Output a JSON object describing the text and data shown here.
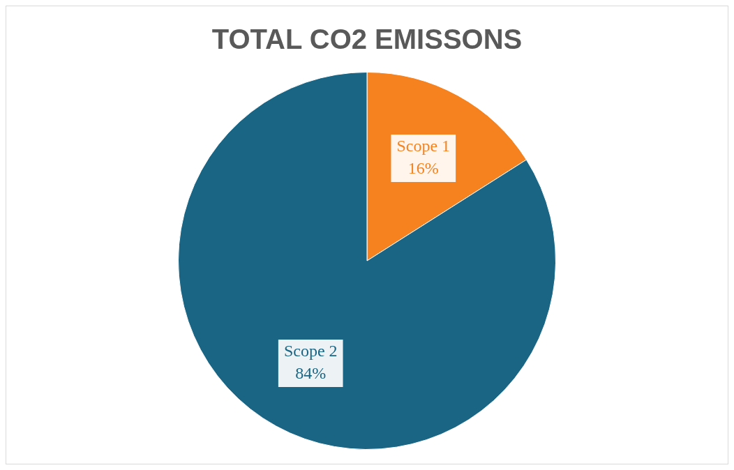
{
  "chart_data": {
    "type": "pie",
    "title": "TOTAL CO2 EMISSONS",
    "categories": [
      "Scope 1",
      "Scope 2"
    ],
    "values": [
      16,
      84
    ],
    "colors": [
      "#f5821f",
      "#1b6584"
    ],
    "value_labels": [
      "16%",
      "84%"
    ]
  }
}
